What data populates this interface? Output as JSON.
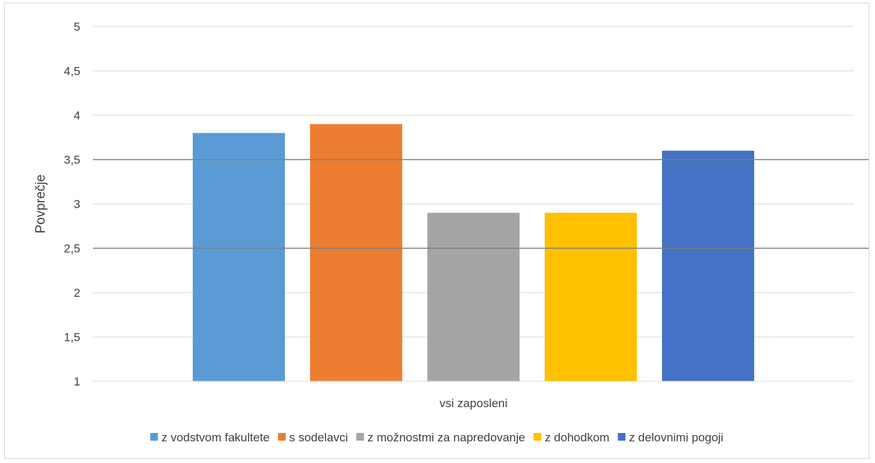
{
  "chart_data": {
    "type": "bar",
    "title": "",
    "xlabel": "",
    "ylabel": "Povprečje",
    "categories": [
      "vsi zaposleni"
    ],
    "series": [
      {
        "name": "z vodstvom fakultete",
        "values": [
          3.8
        ],
        "color": "#5b9bd5"
      },
      {
        "name": "s sodelavci",
        "values": [
          3.9
        ],
        "color": "#ed7d31"
      },
      {
        "name": "z možnostmi za napredovanje",
        "values": [
          2.9
        ],
        "color": "#a5a5a5"
      },
      {
        "name": "z dohodkom",
        "values": [
          2.9
        ],
        "color": "#ffc000"
      },
      {
        "name": "z delovnimi pogoji",
        "values": [
          3.6
        ],
        "color": "#4472c4"
      }
    ],
    "ylim": [
      1,
      5
    ],
    "yticks": [
      "1",
      "1,5",
      "2",
      "2,5",
      "3",
      "3,5",
      "4",
      "4,5",
      "5"
    ],
    "reference_lines": [
      2.5,
      3.5
    ],
    "grid": true,
    "legend_position": "bottom"
  }
}
